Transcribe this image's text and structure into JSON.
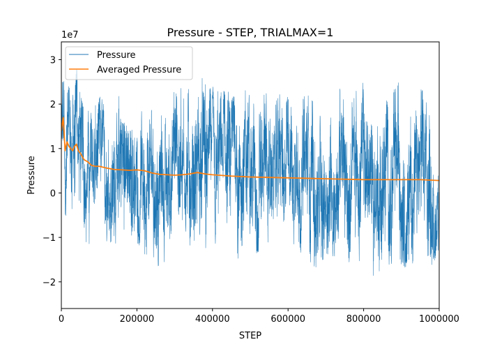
{
  "chart_data": {
    "type": "line",
    "title": "Pressure - STEP, TRIALMAX=1",
    "xlabel": "STEP",
    "ylabel": "Pressure",
    "y_scale_label": "1e7",
    "xlim": [
      0,
      1000000
    ],
    "ylim": [
      -2.6,
      3.4
    ],
    "y_unit_multiplier": 10000000,
    "x_ticks": [
      0,
      200000,
      400000,
      600000,
      800000,
      1000000
    ],
    "x_tick_labels": [
      "0",
      "200000",
      "400000",
      "600000",
      "800000",
      "1000000"
    ],
    "y_ticks": [
      -2,
      -1,
      0,
      1,
      2,
      3
    ],
    "y_tick_labels": [
      "−2",
      "−1",
      "0",
      "1",
      "2",
      "3"
    ],
    "grid": false,
    "legend_position": "top-left",
    "series": [
      {
        "name": "Pressure",
        "color": "#1f77b4",
        "x": [
          0,
          20000,
          40000,
          60000,
          80000,
          100000,
          120000,
          140000,
          160000,
          180000,
          200000,
          220000,
          240000,
          260000,
          280000,
          300000,
          320000,
          340000,
          360000,
          380000,
          400000,
          420000,
          440000,
          460000,
          480000,
          500000,
          520000,
          540000,
          560000,
          580000,
          600000,
          620000,
          640000,
          660000,
          680000,
          700000,
          720000,
          740000,
          760000,
          780000,
          800000,
          820000,
          840000,
          860000,
          880000,
          900000,
          920000,
          940000,
          960000,
          980000,
          1000000
        ],
        "band_upper": [
          2.6,
          2.4,
          2.9,
          2.0,
          1.8,
          2.2,
          2.0,
          2.1,
          2.3,
          2.2,
          2.9,
          2.3,
          2.4,
          2.2,
          2.2,
          2.3,
          2.4,
          2.5,
          3.1,
          2.6,
          2.4,
          2.3,
          2.3,
          2.2,
          2.6,
          2.2,
          2.5,
          2.3,
          2.3,
          2.3,
          2.2,
          2.2,
          2.4,
          2.3,
          2.5,
          2.3,
          2.3,
          2.4,
          2.4,
          2.3,
          2.5,
          2.2,
          2.3,
          2.4,
          2.5,
          2.6,
          2.8,
          2.4,
          2.6,
          2.3,
          2.0
        ],
        "band_lower": [
          -0.9,
          -0.6,
          -0.8,
          -1.2,
          -1.4,
          -1.2,
          -1.1,
          -1.3,
          -1.4,
          -1.3,
          -1.1,
          -1.5,
          -1.6,
          -1.7,
          -1.5,
          -1.2,
          -1.1,
          -1.2,
          -1.3,
          -2.1,
          -1.3,
          -1.4,
          -1.2,
          -1.4,
          -1.6,
          -1.3,
          -1.4,
          -1.5,
          -1.7,
          -1.3,
          -1.3,
          -1.4,
          -1.4,
          -1.6,
          -1.8,
          -1.5,
          -1.5,
          -1.4,
          -1.6,
          -1.5,
          -1.6,
          -1.9,
          -2.2,
          -1.8,
          -1.6,
          -1.7,
          -1.8,
          -1.7,
          -2.0,
          -1.8,
          -1.3
        ]
      },
      {
        "name": "Averaged Pressure",
        "color": "#ff7f0e",
        "x": [
          0,
          5000,
          10000,
          15000,
          20000,
          25000,
          30000,
          35000,
          40000,
          45000,
          50000,
          60000,
          70000,
          80000,
          90000,
          100000,
          120000,
          140000,
          160000,
          180000,
          200000,
          220000,
          240000,
          260000,
          280000,
          300000,
          320000,
          340000,
          360000,
          380000,
          400000,
          450000,
          500000,
          550000,
          600000,
          650000,
          700000,
          750000,
          800000,
          850000,
          900000,
          950000,
          1000000
        ],
        "values": [
          1.4,
          1.7,
          0.95,
          1.15,
          1.05,
          1.0,
          0.95,
          1.05,
          1.1,
          0.95,
          0.9,
          0.75,
          0.7,
          0.62,
          0.6,
          0.6,
          0.56,
          0.53,
          0.52,
          0.51,
          0.52,
          0.5,
          0.45,
          0.42,
          0.41,
          0.4,
          0.41,
          0.43,
          0.46,
          0.43,
          0.41,
          0.38,
          0.36,
          0.35,
          0.34,
          0.33,
          0.32,
          0.31,
          0.3,
          0.3,
          0.3,
          0.3,
          0.28
        ]
      }
    ]
  }
}
